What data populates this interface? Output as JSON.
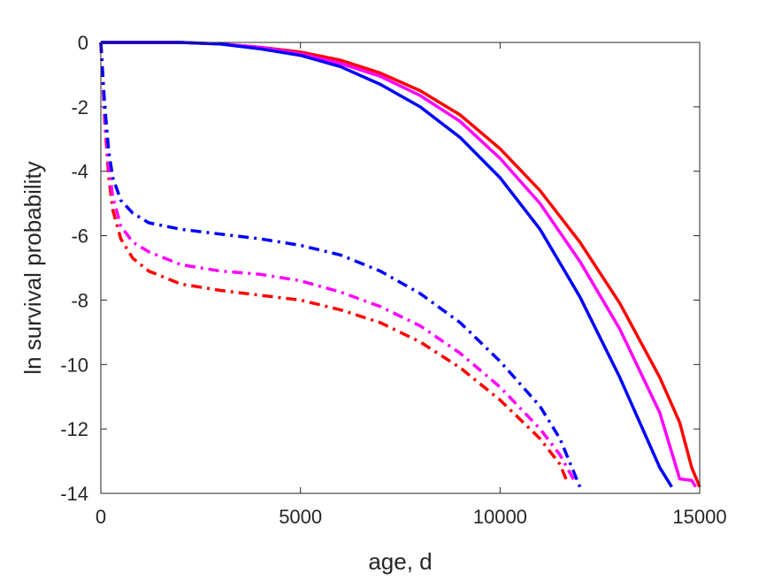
{
  "chart_data": {
    "type": "line",
    "xlabel": "age, d",
    "ylabel": "ln survival probability",
    "xlim": [
      0,
      15000
    ],
    "ylim": [
      -14,
      0
    ],
    "xticks": [
      0,
      5000,
      10000,
      15000
    ],
    "yticks": [
      0,
      -2,
      -4,
      -6,
      -8,
      -10,
      -12,
      -14
    ],
    "grid": false,
    "legend": "none",
    "series": [
      {
        "color": "#ff0000",
        "style": "solid",
        "x": [
          0,
          2000,
          3000,
          4000,
          5000,
          6000,
          7000,
          8000,
          9000,
          10000,
          11000,
          12000,
          13000,
          14000,
          14500,
          14800,
          15000
        ],
        "y": [
          0,
          0,
          -0.05,
          -0.15,
          -0.3,
          -0.55,
          -0.95,
          -1.5,
          -2.25,
          -3.3,
          -4.6,
          -6.2,
          -8.1,
          -10.4,
          -11.8,
          -13.2,
          -13.8
        ]
      },
      {
        "color": "#ff00ff",
        "style": "solid",
        "x": [
          0,
          2000,
          3000,
          4000,
          5000,
          6000,
          7000,
          8000,
          9000,
          10000,
          11000,
          12000,
          13000,
          14000,
          14500,
          14800,
          14900
        ],
        "y": [
          0,
          0,
          -0.05,
          -0.15,
          -0.35,
          -0.65,
          -1.05,
          -1.65,
          -2.45,
          -3.6,
          -5.0,
          -6.8,
          -8.9,
          -11.5,
          -13.55,
          -13.6,
          -13.8
        ]
      },
      {
        "color": "#0000ff",
        "style": "solid",
        "x": [
          0,
          2000,
          3000,
          4000,
          5000,
          6000,
          7000,
          8000,
          9000,
          10000,
          11000,
          12000,
          13000,
          13500,
          14000,
          14300
        ],
        "y": [
          0,
          0,
          -0.05,
          -0.2,
          -0.4,
          -0.75,
          -1.3,
          -2.0,
          -2.95,
          -4.2,
          -5.8,
          -7.9,
          -10.4,
          -11.8,
          -13.2,
          -13.8
        ]
      },
      {
        "color": "#ff0000",
        "style": "dashdot",
        "x": [
          0,
          100,
          200,
          300,
          500,
          800,
          1200,
          2000,
          3000,
          4000,
          5000,
          6000,
          7000,
          8000,
          9000,
          10000,
          11000,
          11500,
          11700
        ],
        "y": [
          0,
          -2.5,
          -4.2,
          -5.2,
          -6.1,
          -6.7,
          -7.1,
          -7.5,
          -7.7,
          -7.85,
          -8.0,
          -8.3,
          -8.7,
          -9.3,
          -10.1,
          -11.1,
          -12.3,
          -13.1,
          -13.7
        ]
      },
      {
        "color": "#ff00ff",
        "style": "dashdot",
        "x": [
          0,
          100,
          200,
          300,
          500,
          800,
          1200,
          2000,
          3000,
          4000,
          5000,
          6000,
          7000,
          8000,
          9000,
          10000,
          11000,
          11500,
          11900
        ],
        "y": [
          0,
          -2.3,
          -3.9,
          -4.8,
          -5.7,
          -6.2,
          -6.5,
          -6.9,
          -7.1,
          -7.2,
          -7.4,
          -7.75,
          -8.2,
          -8.8,
          -9.65,
          -10.7,
          -12.0,
          -12.8,
          -13.7
        ]
      },
      {
        "color": "#0000ff",
        "style": "dashdot",
        "x": [
          0,
          100,
          200,
          300,
          500,
          800,
          1200,
          2000,
          3000,
          4000,
          5000,
          6000,
          7000,
          8000,
          9000,
          10000,
          11000,
          11500,
          12000
        ],
        "y": [
          0,
          -2.0,
          -3.4,
          -4.2,
          -4.9,
          -5.3,
          -5.6,
          -5.8,
          -5.95,
          -6.1,
          -6.3,
          -6.6,
          -7.1,
          -7.8,
          -8.7,
          -9.9,
          -11.3,
          -12.3,
          -13.8
        ]
      }
    ]
  }
}
